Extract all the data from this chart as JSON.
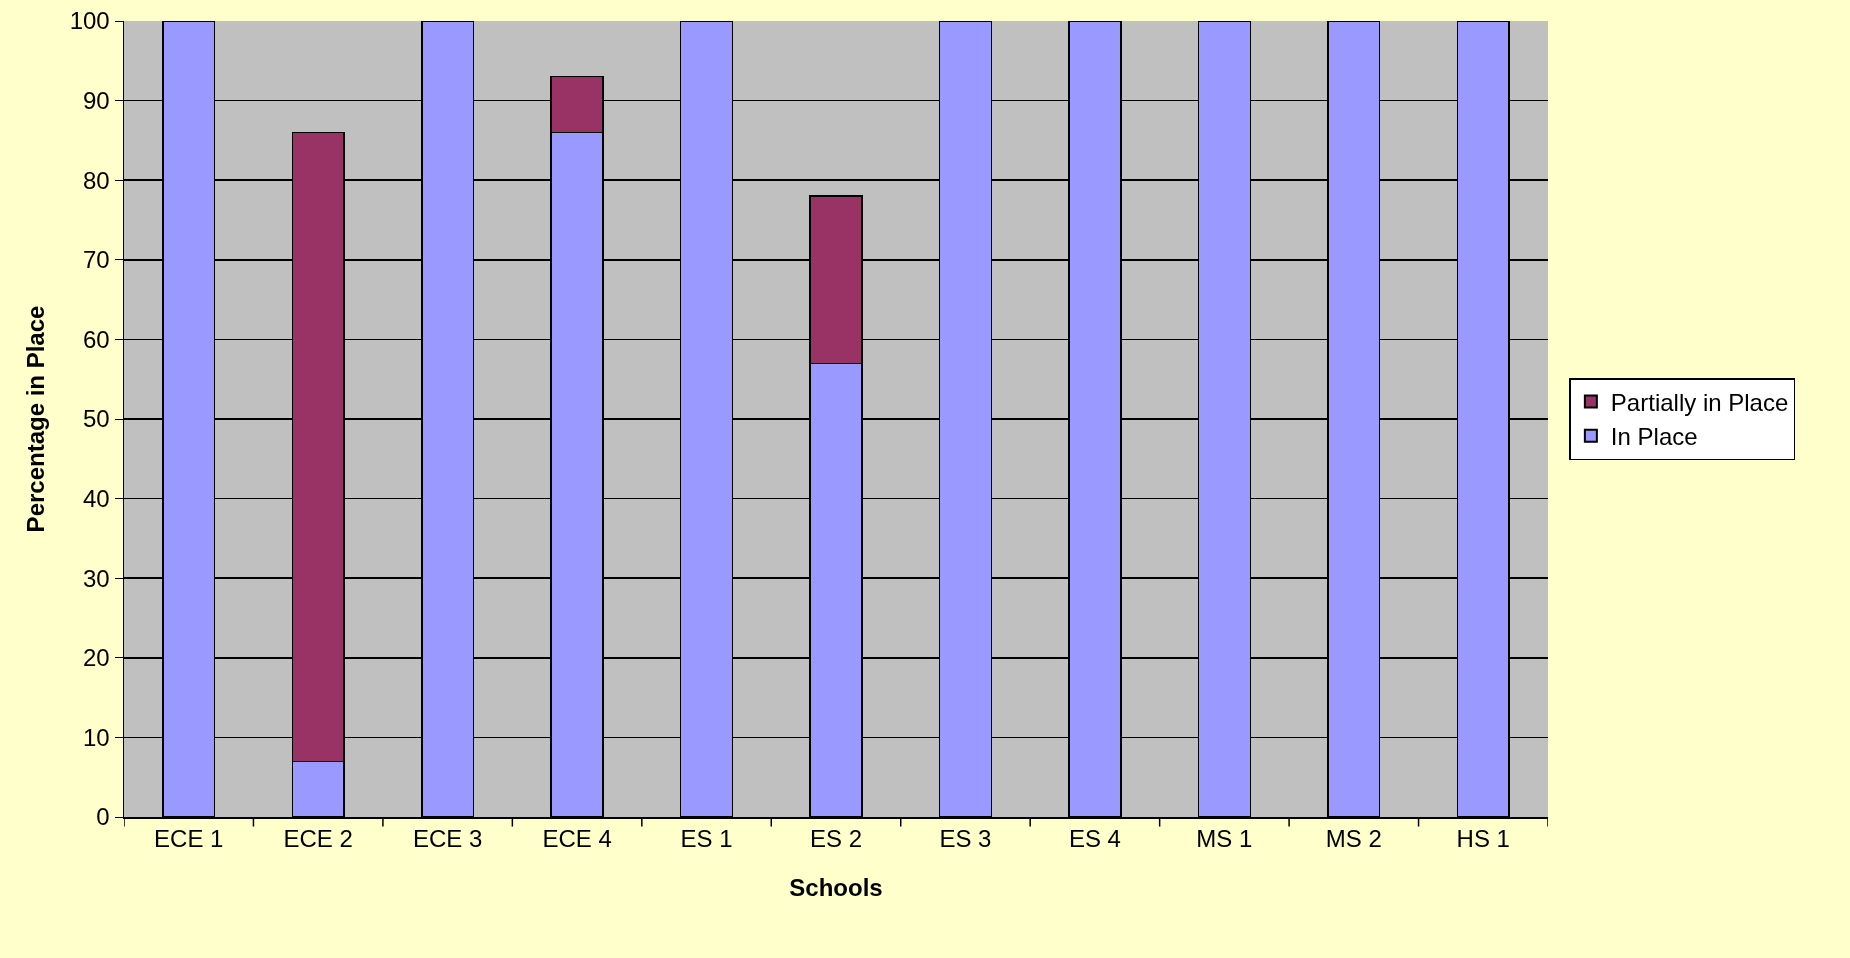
{
  "chart_data": {
    "type": "bar",
    "stacked": true,
    "xlabel": "Schools",
    "ylabel": "Percentage in Place",
    "categories": [
      "ECE 1",
      "ECE 2",
      "ECE 3",
      "ECE 4",
      "ES 1",
      "ES 2",
      "ES 3",
      "ES 4",
      "MS 1",
      "MS 2",
      "HS 1"
    ],
    "series": [
      {
        "name": "In Place",
        "color": "#9999ff",
        "values": [
          100,
          7,
          100,
          86,
          100,
          57,
          100,
          100,
          100,
          100,
          100
        ]
      },
      {
        "name": "Partially in Place",
        "color": "#993366",
        "values": [
          null,
          79,
          null,
          7,
          null,
          21,
          null,
          null,
          null,
          null,
          null
        ]
      }
    ],
    "ylim": [
      0,
      100
    ],
    "yticks": [
      0,
      10,
      20,
      30,
      40,
      50,
      60,
      70,
      80,
      90,
      100
    ],
    "grid": "y",
    "legend": "right"
  }
}
